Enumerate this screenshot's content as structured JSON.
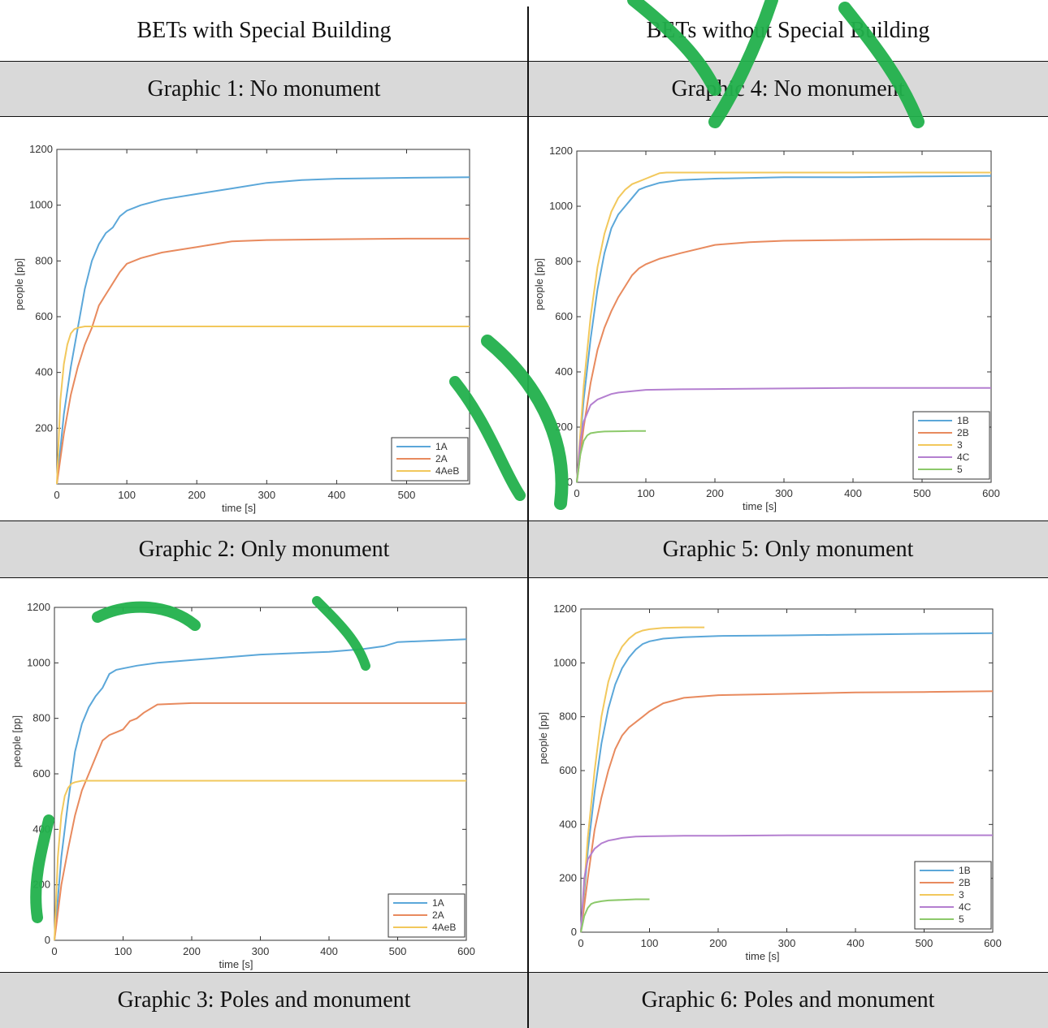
{
  "header": {
    "left": "BETs with Special Building",
    "right": "BETs without Special Building"
  },
  "captions": {
    "g1": "Graphic 1: No monument",
    "g4": "Graphic 4: No monument",
    "g2": "Graphic 2: Only monument",
    "g5": "Graphic 5: Only monument",
    "g3": "Graphic 3: Poles and monument",
    "g6": "Graphic 6: Poles and monument"
  },
  "colors": {
    "caption_bg": "#d9d9d9",
    "watermark": "#22b14c",
    "s1": "#5ba7d9",
    "s2": "#e88a5e",
    "s3": "#f2c85c",
    "s4": "#b47fd0",
    "s5": "#8cc96a"
  },
  "chart_data": [
    {
      "id": "chart1",
      "type": "line",
      "xlabel": "time [s]",
      "ylabel": "people [pp]",
      "xlim": [
        0,
        590
      ],
      "ylim": [
        0,
        1200
      ],
      "xticks": [
        0,
        100,
        200,
        300,
        400,
        500
      ],
      "yticks": [
        200,
        400,
        600,
        800,
        1000,
        1200
      ],
      "legend_position": "bottom-right",
      "series": [
        {
          "name": "1A",
          "color": "#5ba7d9",
          "x": [
            0,
            10,
            20,
            30,
            40,
            50,
            60,
            70,
            80,
            90,
            100,
            120,
            150,
            200,
            250,
            300,
            350,
            400,
            500,
            590
          ],
          "y": [
            0,
            250,
            420,
            560,
            700,
            800,
            860,
            900,
            920,
            960,
            980,
            1000,
            1020,
            1040,
            1060,
            1080,
            1090,
            1095,
            1098,
            1100
          ]
        },
        {
          "name": "2A",
          "color": "#e88a5e",
          "x": [
            0,
            10,
            20,
            30,
            40,
            50,
            60,
            70,
            80,
            90,
            100,
            120,
            150,
            200,
            250,
            300,
            400,
            500,
            590
          ],
          "y": [
            0,
            180,
            320,
            420,
            500,
            560,
            640,
            680,
            720,
            760,
            790,
            810,
            830,
            850,
            870,
            875,
            878,
            880,
            880
          ]
        },
        {
          "name": "4AeB",
          "color": "#f2c85c",
          "x": [
            0,
            5,
            10,
            15,
            20,
            25,
            30,
            40,
            60,
            100,
            200,
            400,
            590
          ],
          "y": [
            0,
            300,
            430,
            500,
            540,
            555,
            560,
            565,
            565,
            565,
            565,
            565,
            565
          ]
        }
      ]
    },
    {
      "id": "chart4",
      "type": "line",
      "xlabel": "time [s]",
      "ylabel": "people [pp]",
      "xlim": [
        0,
        600
      ],
      "ylim": [
        0,
        1200
      ],
      "xticks": [
        0,
        100,
        200,
        300,
        400,
        500,
        600
      ],
      "yticks": [
        0,
        200,
        400,
        600,
        800,
        1000,
        1200
      ],
      "legend_position": "bottom-right",
      "series": [
        {
          "name": "1B",
          "color": "#5ba7d9",
          "x": [
            0,
            10,
            20,
            30,
            40,
            50,
            60,
            70,
            80,
            90,
            100,
            120,
            150,
            200,
            300,
            400,
            500,
            600
          ],
          "y": [
            0,
            300,
            520,
            700,
            830,
            920,
            970,
            1000,
            1030,
            1060,
            1070,
            1085,
            1095,
            1100,
            1105,
            1105,
            1108,
            1110
          ]
        },
        {
          "name": "2B",
          "color": "#e88a5e",
          "x": [
            0,
            10,
            20,
            30,
            40,
            50,
            60,
            70,
            80,
            90,
            100,
            120,
            150,
            200,
            250,
            300,
            400,
            500,
            600
          ],
          "y": [
            0,
            200,
            360,
            480,
            560,
            620,
            670,
            710,
            750,
            775,
            790,
            810,
            830,
            860,
            870,
            875,
            878,
            880,
            880
          ]
        },
        {
          "name": "3",
          "color": "#f2c85c",
          "x": [
            0,
            10,
            20,
            30,
            40,
            50,
            60,
            70,
            80,
            90,
            100,
            110,
            120,
            130,
            200,
            300,
            400,
            500,
            600
          ],
          "y": [
            0,
            350,
            600,
            780,
            900,
            980,
            1030,
            1060,
            1080,
            1090,
            1100,
            1110,
            1120,
            1122,
            1122,
            1122,
            1122,
            1122,
            1122
          ]
        },
        {
          "name": "4C",
          "color": "#b47fd0",
          "x": [
            0,
            5,
            10,
            20,
            30,
            40,
            50,
            60,
            80,
            100,
            150,
            200,
            300,
            400,
            500,
            600
          ],
          "y": [
            0,
            150,
            220,
            280,
            300,
            310,
            320,
            325,
            330,
            335,
            337,
            338,
            340,
            342,
            342,
            342
          ]
        },
        {
          "name": "5",
          "color": "#8cc96a",
          "x": [
            0,
            5,
            10,
            15,
            20,
            30,
            40,
            60,
            80,
            100
          ],
          "y": [
            0,
            100,
            150,
            170,
            178,
            182,
            184,
            185,
            186,
            186
          ]
        }
      ]
    },
    {
      "id": "chart3",
      "type": "line",
      "xlabel": "time [s]",
      "ylabel": "people [pp]",
      "xlim": [
        0,
        600
      ],
      "ylim": [
        0,
        1200
      ],
      "xticks": [
        0,
        100,
        200,
        300,
        400,
        500,
        600
      ],
      "yticks": [
        0,
        200,
        400,
        600,
        800,
        1000,
        1200
      ],
      "legend_position": "bottom-right",
      "series": [
        {
          "name": "1A",
          "color": "#5ba7d9",
          "x": [
            0,
            10,
            20,
            30,
            40,
            50,
            60,
            70,
            80,
            90,
            100,
            120,
            150,
            200,
            250,
            300,
            350,
            400,
            450,
            480,
            500,
            550,
            600
          ],
          "y": [
            0,
            300,
            500,
            680,
            780,
            840,
            880,
            910,
            960,
            975,
            980,
            990,
            1000,
            1010,
            1020,
            1030,
            1035,
            1040,
            1050,
            1060,
            1075,
            1080,
            1085
          ]
        },
        {
          "name": "2A",
          "color": "#e88a5e",
          "x": [
            0,
            10,
            20,
            30,
            40,
            50,
            60,
            70,
            80,
            90,
            100,
            110,
            120,
            130,
            150,
            200,
            300,
            400,
            500,
            600
          ],
          "y": [
            0,
            200,
            330,
            450,
            540,
            600,
            660,
            720,
            740,
            750,
            760,
            790,
            800,
            820,
            850,
            855,
            855,
            855,
            855,
            855
          ]
        },
        {
          "name": "4AeB",
          "color": "#f2c85c",
          "x": [
            0,
            5,
            10,
            15,
            20,
            25,
            30,
            40,
            60,
            100,
            200,
            400,
            600
          ],
          "y": [
            0,
            300,
            450,
            520,
            550,
            565,
            570,
            575,
            575,
            575,
            575,
            575,
            575
          ]
        }
      ]
    },
    {
      "id": "chart6",
      "type": "line",
      "xlabel": "time [s]",
      "ylabel": "people [pp]",
      "xlim": [
        0,
        600
      ],
      "ylim": [
        0,
        1200
      ],
      "xticks": [
        0,
        100,
        200,
        300,
        400,
        500,
        600
      ],
      "yticks": [
        0,
        200,
        400,
        600,
        800,
        1000,
        1200
      ],
      "legend_position": "bottom-right",
      "series": [
        {
          "name": "1B",
          "color": "#5ba7d9",
          "x": [
            0,
            10,
            20,
            30,
            40,
            50,
            60,
            70,
            80,
            90,
            100,
            120,
            150,
            200,
            300,
            400,
            500,
            600
          ],
          "y": [
            0,
            300,
            520,
            700,
            830,
            920,
            980,
            1020,
            1050,
            1070,
            1080,
            1090,
            1095,
            1100,
            1102,
            1105,
            1108,
            1110
          ]
        },
        {
          "name": "2B",
          "color": "#e88a5e",
          "x": [
            0,
            10,
            20,
            30,
            40,
            50,
            60,
            70,
            80,
            90,
            100,
            120,
            150,
            200,
            300,
            400,
            500,
            600
          ],
          "y": [
            0,
            200,
            380,
            500,
            600,
            680,
            730,
            760,
            780,
            800,
            820,
            850,
            870,
            880,
            885,
            890,
            892,
            895
          ]
        },
        {
          "name": "3",
          "color": "#f2c85c",
          "x": [
            0,
            10,
            20,
            30,
            40,
            50,
            60,
            70,
            80,
            90,
            100,
            120,
            150,
            180
          ],
          "y": [
            0,
            350,
            600,
            800,
            930,
            1010,
            1060,
            1090,
            1110,
            1120,
            1125,
            1130,
            1132,
            1132
          ]
        },
        {
          "name": "4C",
          "color": "#b47fd0",
          "x": [
            0,
            5,
            10,
            20,
            30,
            40,
            50,
            60,
            80,
            100,
            150,
            200,
            300,
            400,
            500,
            600
          ],
          "y": [
            0,
            200,
            270,
            310,
            330,
            340,
            345,
            350,
            355,
            356,
            358,
            358,
            360,
            360,
            360,
            360
          ]
        },
        {
          "name": "5",
          "color": "#8cc96a",
          "x": [
            0,
            5,
            10,
            15,
            20,
            30,
            40,
            60,
            80,
            100
          ],
          "y": [
            0,
            60,
            90,
            105,
            110,
            115,
            118,
            120,
            122,
            122
          ]
        }
      ]
    }
  ]
}
